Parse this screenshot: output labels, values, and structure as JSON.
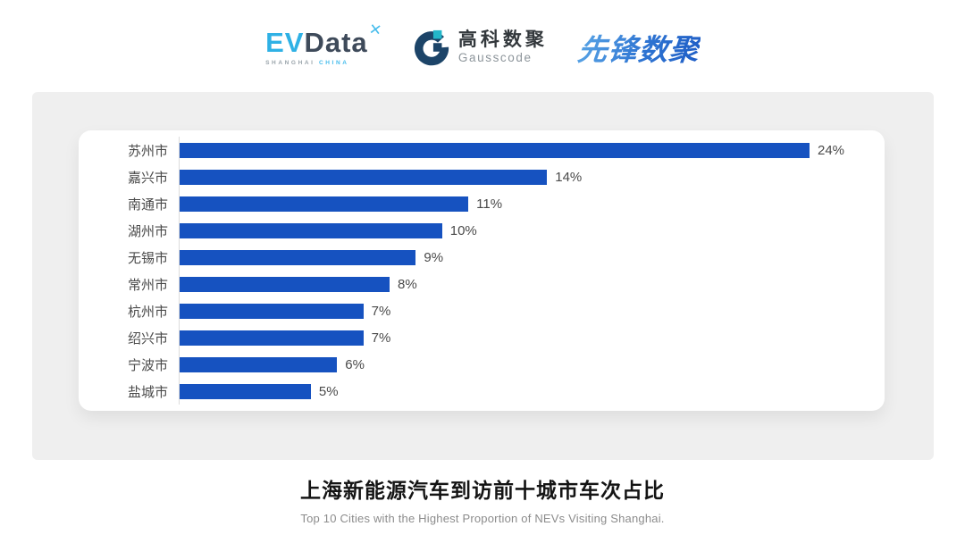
{
  "header": {
    "evdata": {
      "ev": "EV",
      "data": "Data",
      "x_mark": "✕",
      "sub_left": "SHANGHAI",
      "sub_right": "CHINA"
    },
    "gausscode": {
      "cn": "高科数聚",
      "en": "Gausscode"
    },
    "pioneer": {
      "text": "先锋数聚"
    }
  },
  "chart_data": {
    "type": "bar",
    "orientation": "horizontal",
    "categories": [
      "苏州市",
      "嘉兴市",
      "南通市",
      "湖州市",
      "无锡市",
      "常州市",
      "杭州市",
      "绍兴市",
      "宁波市",
      "盐城市"
    ],
    "values": [
      24,
      14,
      11,
      10,
      9,
      8,
      7,
      7,
      6,
      5
    ],
    "labels": [
      "24%",
      "14%",
      "11%",
      "10%",
      "9%",
      "8%",
      "7%",
      "7%",
      "6%",
      "5%"
    ],
    "unit": "%",
    "xlim": [
      0,
      24
    ],
    "bar_color": "#1652c0",
    "axis_line_color": "#dcdcdc",
    "legend": "none",
    "grid": "off"
  },
  "footer": {
    "title": "上海新能源汽车到访前十城市车次占比",
    "subtitle": "Top 10 Cities with the Highest Proportion of  NEVs Visiting Shanghai."
  },
  "colors": {
    "panel_bg": "#efefef",
    "card_bg": "#ffffff",
    "accent_blue": "#1652c0"
  }
}
